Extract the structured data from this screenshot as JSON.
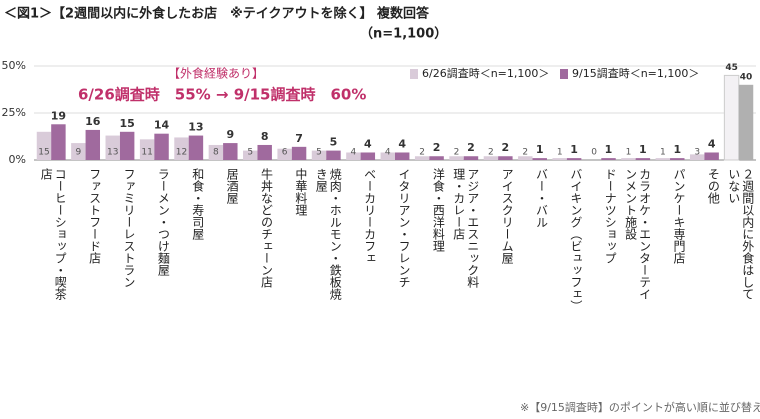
{
  "chart_data": {
    "type": "bar",
    "title": "＜図1＞【2週間以内に外食したお店　※テイクアウトを除く】 複数回答",
    "subtitle": "（n=1,100）",
    "annotation_heading": "【外食経験あり】",
    "annotation": "6/26調査時　55% → 9/15調査時　60%",
    "footnote": "※【9/15調査時】のポイントが高い順に並び替え",
    "categories": [
      "コーヒーショップ・喫茶店",
      "ファストフード店",
      "ファミリーレストラン",
      "ラーメン・つけ麺屋",
      "和食・寿司屋",
      "居酒屋",
      "牛丼などのチェーン店",
      "中華料理",
      "焼肉・ホルモン・鉄板焼き屋",
      "ベーカリーカフェ",
      "イタリアン・フレンチ",
      "洋食・西洋料理",
      "アジア・エスニック料理・カレー店",
      "アイスクリーム屋",
      "バー・バル",
      "バイキング（ビュッフェ）",
      "ドーナツショップ",
      "カラオケ・エンターテインメント施設",
      "パンケーキ専門店",
      "その他",
      "２週間以内に外食はしていない"
    ],
    "series": [
      {
        "name": "6/26調査時＜n=1,100＞",
        "color": "#d9cbd9",
        "last_color": "#f3f1f4",
        "values": [
          15,
          9,
          13,
          11,
          12,
          8,
          5,
          6,
          5,
          4,
          4,
          2,
          2,
          2,
          2,
          1,
          0,
          1,
          1,
          3,
          45
        ]
      },
      {
        "name": "9/15調査時＜n=1,100＞",
        "color": "#a06a9e",
        "last_color": "#b0b0b0",
        "values": [
          19,
          16,
          15,
          14,
          13,
          9,
          8,
          7,
          5,
          4,
          4,
          2,
          2,
          2,
          1,
          1,
          1,
          1,
          1,
          4,
          40
        ]
      }
    ],
    "ylim": [
      0,
      50
    ],
    "yticks": [
      {
        "value": 0,
        "label": "0%"
      },
      {
        "value": 25,
        "label": "25%"
      },
      {
        "value": 50,
        "label": "50%"
      }
    ],
    "grid": true
  }
}
